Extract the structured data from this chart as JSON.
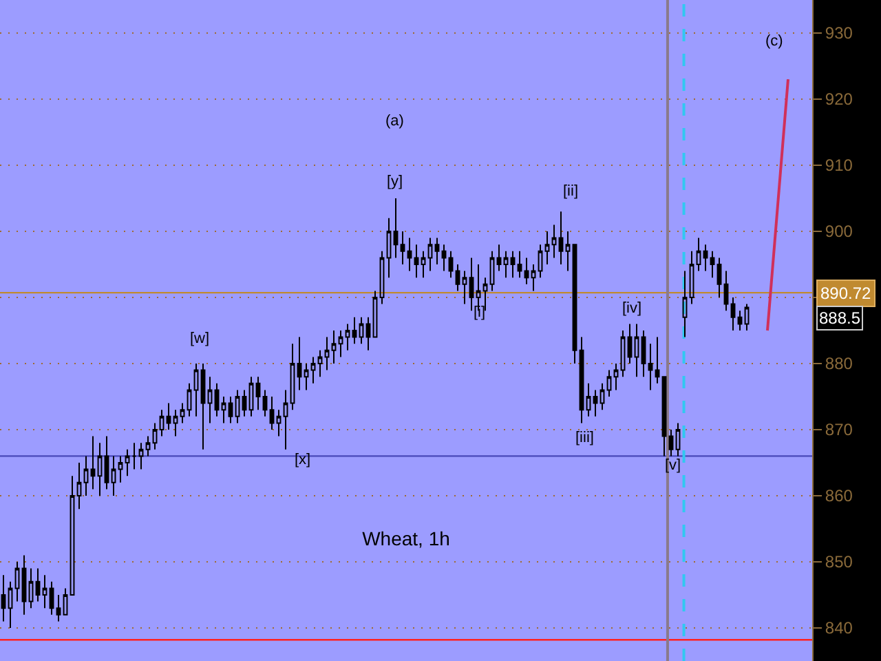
{
  "chart_data": {
    "type": "candlestick",
    "title": "Wheat, 1h",
    "categories": [
      null,
      null,
      null,
      null,
      null,
      null,
      null,
      null,
      null,
      null,
      null,
      null,
      null,
      null,
      null,
      null,
      null,
      null,
      null,
      null,
      null,
      null,
      null,
      null,
      null,
      null,
      null,
      null,
      null,
      null,
      null,
      null,
      null,
      null,
      null,
      null,
      null,
      null,
      null,
      null,
      null,
      null,
      null,
      null,
      null,
      null,
      null,
      null,
      null,
      null,
      null,
      null,
      null,
      null,
      null,
      null,
      null,
      null,
      null,
      null,
      null,
      null,
      null,
      null,
      null,
      null,
      null,
      null,
      null,
      null,
      null,
      null,
      null,
      null,
      null,
      null,
      null,
      null,
      null,
      null,
      null,
      null,
      null,
      null,
      null,
      null,
      null,
      null,
      null,
      null,
      null,
      null,
      null,
      null,
      null,
      null,
      null,
      null,
      null,
      null,
      null,
      null,
      null,
      null,
      null,
      null,
      null,
      null,
      null,
      null,
      null,
      null,
      null,
      null,
      null,
      null,
      null,
      null
    ],
    "ohlc": [
      [
        845,
        848,
        841,
        843
      ],
      [
        843,
        847,
        840,
        846
      ],
      [
        846,
        850,
        844,
        849
      ],
      [
        849,
        851,
        842,
        844
      ],
      [
        844,
        849,
        843,
        847
      ],
      [
        847,
        849,
        844,
        845
      ],
      [
        845,
        848,
        843,
        846
      ],
      [
        846,
        847,
        842,
        843
      ],
      [
        843,
        845,
        841,
        842
      ],
      [
        842,
        846,
        842,
        845
      ],
      [
        845,
        863,
        845,
        860
      ],
      [
        860,
        865,
        858,
        862
      ],
      [
        862,
        866,
        860,
        864
      ],
      [
        864,
        869,
        861,
        863
      ],
      [
        863,
        868,
        860,
        866
      ],
      [
        866,
        869,
        861,
        862
      ],
      [
        862,
        866,
        860,
        864
      ],
      [
        864,
        866,
        862,
        865
      ],
      [
        865,
        867,
        863,
        866
      ],
      [
        866,
        868,
        864,
        866
      ],
      [
        866,
        868,
        864,
        867
      ],
      [
        867,
        869,
        866,
        868
      ],
      [
        868,
        871,
        867,
        870
      ],
      [
        870,
        873,
        869,
        872
      ],
      [
        872,
        874,
        870,
        871
      ],
      [
        871,
        873,
        869,
        872
      ],
      [
        872,
        874,
        871,
        873
      ],
      [
        873,
        877,
        872,
        876
      ],
      [
        876,
        880,
        872,
        879
      ],
      [
        879,
        880,
        867,
        874
      ],
      [
        874,
        878,
        871,
        876
      ],
      [
        876,
        877,
        872,
        873
      ],
      [
        873,
        875,
        871,
        874
      ],
      [
        874,
        875,
        871,
        872
      ],
      [
        872,
        876,
        871,
        875
      ],
      [
        875,
        876,
        872,
        873
      ],
      [
        873,
        878,
        872,
        877
      ],
      [
        877,
        878,
        873,
        875
      ],
      [
        875,
        876,
        872,
        873
      ],
      [
        873,
        875,
        870,
        871
      ],
      [
        871,
        873,
        869,
        872
      ],
      [
        872,
        876,
        867,
        874
      ],
      [
        874,
        883,
        873,
        880
      ],
      [
        880,
        884,
        876,
        878
      ],
      [
        878,
        880,
        876,
        879
      ],
      [
        879,
        881,
        877,
        880
      ],
      [
        880,
        882,
        878,
        881
      ],
      [
        881,
        884,
        879,
        882
      ],
      [
        882,
        885,
        880,
        883
      ],
      [
        883,
        885,
        881,
        884
      ],
      [
        884,
        886,
        882,
        885
      ],
      [
        885,
        887,
        883,
        884
      ],
      [
        884,
        887,
        883,
        886
      ],
      [
        886,
        887,
        882,
        884
      ],
      [
        884,
        891,
        884,
        890
      ],
      [
        890,
        897,
        889,
        896
      ],
      [
        896,
        902,
        893,
        900
      ],
      [
        900,
        905,
        896,
        898
      ],
      [
        898,
        900,
        895,
        897
      ],
      [
        897,
        899,
        894,
        896
      ],
      [
        896,
        898,
        893,
        895
      ],
      [
        895,
        897,
        893,
        896
      ],
      [
        896,
        899,
        894,
        898
      ],
      [
        898,
        899,
        895,
        897
      ],
      [
        897,
        898,
        894,
        896
      ],
      [
        896,
        897,
        893,
        894
      ],
      [
        894,
        895,
        891,
        892
      ],
      [
        892,
        894,
        889,
        893
      ],
      [
        893,
        896,
        888,
        890
      ],
      [
        890,
        895,
        888,
        891
      ],
      [
        891,
        893,
        888,
        892
      ],
      [
        892,
        897,
        891,
        896
      ],
      [
        896,
        898,
        894,
        895
      ],
      [
        895,
        897,
        893,
        896
      ],
      [
        896,
        897,
        893,
        895
      ],
      [
        895,
        897,
        893,
        894
      ],
      [
        894,
        896,
        892,
        893
      ],
      [
        893,
        895,
        891,
        894
      ],
      [
        894,
        898,
        893,
        897
      ],
      [
        897,
        900,
        895,
        898
      ],
      [
        898,
        901,
        896,
        899
      ],
      [
        899,
        903,
        895,
        897
      ],
      [
        897,
        900,
        894,
        898
      ],
      [
        898,
        898,
        880,
        882
      ],
      [
        882,
        884,
        871,
        873
      ],
      [
        873,
        877,
        872,
        875
      ],
      [
        875,
        876,
        872,
        874
      ],
      [
        874,
        877,
        873,
        876
      ],
      [
        876,
        879,
        875,
        878
      ],
      [
        878,
        880,
        876,
        879
      ],
      [
        879,
        885,
        878,
        884
      ],
      [
        884,
        886,
        880,
        881
      ],
      [
        881,
        886,
        878,
        884
      ],
      [
        884,
        885,
        878,
        880
      ],
      [
        880,
        883,
        876,
        879
      ],
      [
        879,
        884,
        877,
        878
      ],
      [
        878,
        878,
        866,
        869
      ],
      [
        869,
        870,
        866,
        867
      ],
      [
        867,
        871,
        866,
        870
      ],
      [
        887,
        894,
        884,
        890
      ],
      [
        890,
        897,
        889,
        895
      ],
      [
        895,
        899,
        894,
        897
      ],
      [
        897,
        898,
        894,
        896
      ],
      [
        896,
        897,
        893,
        895
      ],
      [
        895,
        896,
        890,
        892
      ],
      [
        892,
        894,
        888,
        889
      ],
      [
        889,
        890,
        885,
        887
      ],
      [
        887,
        888,
        885,
        886
      ],
      [
        886,
        889,
        885,
        888.5
      ],
      null,
      null,
      null,
      null,
      null,
      null,
      null,
      null,
      null
    ],
    "series": [
      {
        "type": "line",
        "color": "#d0305a",
        "values": [
          null,
          null,
          null,
          null,
          null,
          null,
          null,
          null,
          null,
          null,
          null,
          null,
          null,
          null,
          null,
          null,
          null,
          null,
          null,
          null,
          null,
          null,
          null,
          null,
          null,
          null,
          null,
          null,
          null,
          null,
          null,
          null,
          null,
          null,
          null,
          null,
          null,
          null,
          null,
          null,
          null,
          null,
          null,
          null,
          null,
          null,
          null,
          null,
          null,
          null,
          null,
          null,
          null,
          null,
          null,
          null,
          null,
          null,
          null,
          null,
          null,
          null,
          null,
          null,
          null,
          null,
          null,
          null,
          null,
          null,
          null,
          null,
          null,
          null,
          null,
          null,
          null,
          null,
          null,
          null,
          null,
          null,
          null,
          null,
          null,
          null,
          null,
          null,
          null,
          null,
          null,
          null,
          null,
          null,
          null,
          null,
          null,
          null,
          null,
          null,
          null,
          null,
          null,
          null,
          null,
          null,
          null,
          null,
          null,
          null,
          null,
          885,
          null,
          null,
          923,
          null,
          null,
          null
        ]
      }
    ],
    "ylim": [
      835,
      935
    ],
    "yticks": [
      840,
      850,
      860,
      870,
      880,
      {
        "value": 890,
        "label": null
      },
      900,
      910,
      920,
      930
    ],
    "tick_labels": "y",
    "grid": "y",
    "ref_lines": [
      {
        "axis": "y",
        "value": 890.72,
        "label": "890.72",
        "color": "#c08a30"
      },
      {
        "axis": "y",
        "value": 838.2,
        "color": "#ff2020"
      },
      {
        "axis": "y",
        "value": 866,
        "color": "#4848b8"
      }
    ],
    "annotations": [
      "(a)",
      "[y]",
      "[w]",
      "[x]",
      "[i]",
      "[ii]",
      "[iii]",
      "[iv]",
      "[v]",
      "(c)",
      "888.5"
    ]
  }
}
